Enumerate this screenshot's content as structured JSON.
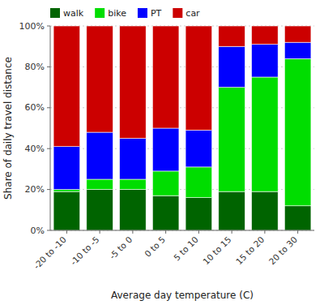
{
  "chart_data": {
    "type": "bar",
    "stacked": true,
    "xlabel": "Average day temperature (C)",
    "ylabel": "Share of daily travel distance",
    "categories": [
      "-20 to -10",
      "-10 to -5",
      "-5 to 0",
      "0 to 5",
      "5 to 10",
      "10 to 15",
      "15 to 20",
      "20 to 30"
    ],
    "series": [
      {
        "name": "walk",
        "color": "#006400",
        "values": [
          0.19,
          0.2,
          0.2,
          0.17,
          0.16,
          0.19,
          0.19,
          0.12
        ]
      },
      {
        "name": "bike",
        "color": "#00dd00",
        "values": [
          0.01,
          0.05,
          0.05,
          0.12,
          0.15,
          0.51,
          0.56,
          0.72
        ]
      },
      {
        "name": "PT",
        "color": "#0000ff",
        "values": [
          0.21,
          0.23,
          0.2,
          0.21,
          0.18,
          0.2,
          0.16,
          0.08
        ]
      },
      {
        "name": "car",
        "color": "#cc0000",
        "values": [
          0.59,
          0.52,
          0.55,
          0.5,
          0.51,
          0.1,
          0.09,
          0.08
        ]
      }
    ],
    "ylim": [
      0,
      1.0
    ],
    "yticks": [
      {
        "value": 0.0,
        "label": "0%"
      },
      {
        "value": 0.2,
        "label": "20%"
      },
      {
        "value": 0.4,
        "label": "40%"
      },
      {
        "value": 0.6,
        "label": "60%"
      },
      {
        "value": 0.8,
        "label": "80%"
      },
      {
        "value": 1.0,
        "label": "100%"
      }
    ],
    "grid": true,
    "legend": "upper left"
  }
}
